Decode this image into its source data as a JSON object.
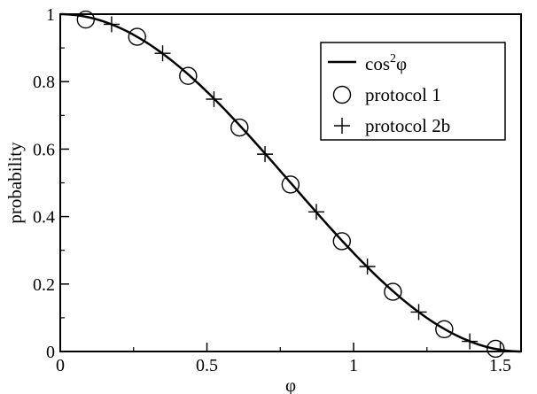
{
  "chart_data": {
    "type": "line",
    "xlabel": "φ",
    "ylabel": "probability",
    "xlim": [
      0,
      1.5708
    ],
    "ylim": [
      0,
      1
    ],
    "x_ticks": [
      {
        "value": 0,
        "label": "0"
      },
      {
        "value": 0.5,
        "label": "0.5"
      },
      {
        "value": 1,
        "label": "1"
      },
      {
        "value": 1.5,
        "label": "1.5"
      }
    ],
    "y_ticks": [
      {
        "value": 0,
        "label": "0"
      },
      {
        "value": 0.2,
        "label": "0.2"
      },
      {
        "value": 0.4,
        "label": "0.4"
      },
      {
        "value": 0.6,
        "label": "0.6"
      },
      {
        "value": 0.8,
        "label": "0.8"
      },
      {
        "value": 1,
        "label": "1"
      }
    ],
    "grid": false,
    "legend_position": "top-right",
    "series": [
      {
        "name": "cos²φ",
        "legend_base": "cos",
        "legend_sup": "2",
        "legend_var": "φ",
        "kind": "curve",
        "function": "cos^2",
        "domain": [
          0,
          1.5708
        ]
      },
      {
        "name": "protocol 1",
        "kind": "marker",
        "marker": "circle",
        "x": [
          0.087,
          0.262,
          0.436,
          0.611,
          0.785,
          0.96,
          1.134,
          1.309,
          1.484
        ],
        "y": [
          0.984,
          0.933,
          0.817,
          0.664,
          0.495,
          0.327,
          0.177,
          0.066,
          0.008
        ]
      },
      {
        "name": "protocol 2b",
        "kind": "marker",
        "marker": "plus",
        "x": [
          0.175,
          0.349,
          0.524,
          0.698,
          0.873,
          1.047,
          1.222,
          1.396
        ],
        "y": [
          0.97,
          0.884,
          0.748,
          0.585,
          0.414,
          0.252,
          0.117,
          0.03
        ]
      }
    ]
  }
}
